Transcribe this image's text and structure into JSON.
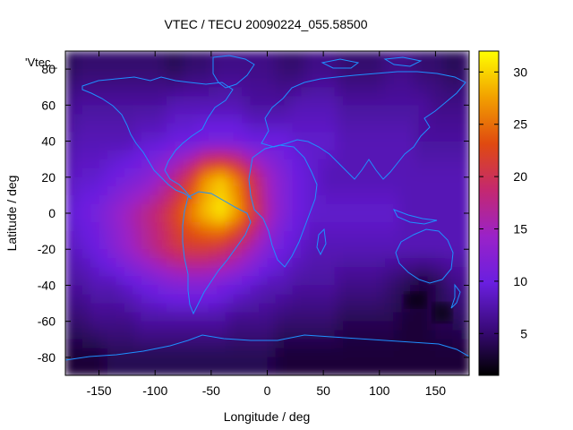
{
  "chart_data": {
    "type": "heatmap",
    "title": "VTEC / TECU 20090224_055.58500",
    "xlabel": "Longitude / deg",
    "ylabel": "Latitude / deg",
    "xlim": [
      -180,
      180
    ],
    "ylim": [
      -90,
      90
    ],
    "x_ticks": [
      -150,
      -100,
      -50,
      0,
      50,
      100,
      150
    ],
    "y_ticks": [
      -80,
      -60,
      -40,
      -20,
      0,
      20,
      40,
      60,
      80
    ],
    "colorbar": {
      "range": [
        1,
        32
      ],
      "ticks": [
        5,
        10,
        15,
        20,
        25,
        30
      ]
    },
    "key_label": "'Vtec_",
    "colormap": [
      "#000000",
      "#3a0a7a",
      "#6a1fe0",
      "#9a22c8",
      "#c42870",
      "#e04a10",
      "#f2a000",
      "#ffff00"
    ],
    "coastline_color": "#1e90ff",
    "grid": false,
    "value_field": [
      {
        "lat": 80,
        "values": [
          4,
          5,
          5,
          5,
          5,
          5,
          5,
          4,
          5,
          5,
          6,
          6,
          6,
          6,
          5,
          5,
          6,
          6,
          5,
          5,
          5,
          6,
          6,
          5,
          5,
          4,
          5
        ]
      },
      {
        "lat": 60,
        "values": [
          6,
          7,
          7,
          7,
          7,
          7,
          7,
          8,
          8,
          8,
          8,
          8,
          7,
          7,
          7,
          8,
          8,
          8,
          7,
          7,
          7,
          7,
          7,
          7,
          6,
          6,
          6
        ]
      },
      {
        "lat": 40,
        "values": [
          7,
          8,
          8,
          8,
          8,
          9,
          9,
          10,
          10,
          11,
          11,
          11,
          10,
          10,
          10,
          9,
          9,
          9,
          8,
          8,
          8,
          8,
          8,
          7,
          7,
          7,
          7
        ]
      },
      {
        "lat": 20,
        "values": [
          8,
          9,
          9,
          10,
          11,
          12,
          14,
          17,
          21,
          27,
          29,
          26,
          20,
          15,
          12,
          10,
          9,
          8,
          8,
          8,
          8,
          8,
          8,
          8,
          8,
          8,
          8
        ]
      },
      {
        "lat": 0,
        "values": [
          9,
          10,
          11,
          13,
          15,
          17,
          19,
          22,
          26,
          29,
          31,
          28,
          22,
          16,
          12,
          10,
          9,
          9,
          9,
          9,
          9,
          9,
          8,
          8,
          8,
          8,
          8
        ]
      },
      {
        "lat": -20,
        "values": [
          8,
          9,
          10,
          12,
          14,
          16,
          18,
          20,
          21,
          21,
          20,
          18,
          15,
          12,
          10,
          9,
          8,
          8,
          8,
          8,
          8,
          8,
          8,
          8,
          8,
          8,
          8
        ]
      },
      {
        "lat": -40,
        "values": [
          7,
          7,
          8,
          8,
          9,
          10,
          11,
          12,
          12,
          12,
          11,
          10,
          9,
          8,
          8,
          7,
          7,
          7,
          6,
          6,
          6,
          5,
          4,
          3,
          4,
          6,
          6
        ]
      },
      {
        "lat": -60,
        "values": [
          5,
          5,
          6,
          6,
          6,
          7,
          7,
          7,
          7,
          7,
          7,
          6,
          6,
          6,
          5,
          5,
          5,
          5,
          4,
          4,
          4,
          4,
          3,
          3,
          4,
          4,
          5
        ]
      },
      {
        "lat": -80,
        "values": [
          3,
          3,
          3,
          4,
          4,
          4,
          4,
          4,
          4,
          4,
          4,
          4,
          4,
          4,
          3,
          3,
          3,
          3,
          3,
          3,
          3,
          3,
          3,
          3,
          3,
          3,
          3
        ]
      }
    ]
  }
}
